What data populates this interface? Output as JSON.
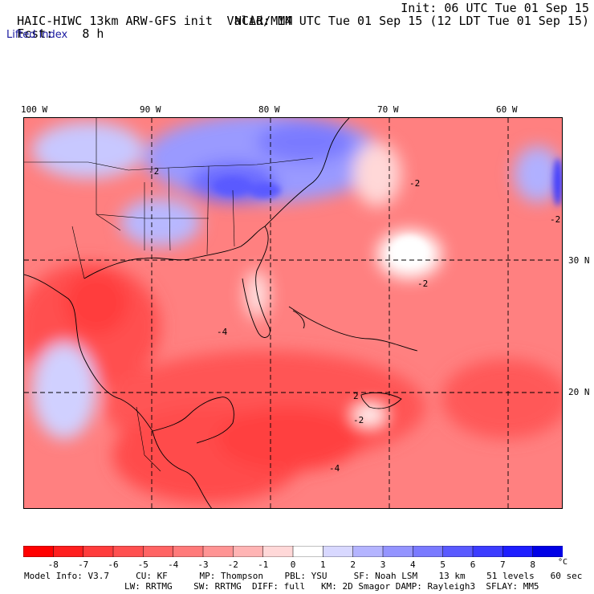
{
  "header": {
    "model_title": "HAIC-HIWC 13km ARW-GFS init",
    "org": "NCAR/MMM",
    "init": "Init: 06 UTC Tue 01 Sep 15",
    "fcst_label": "Fcst:",
    "fcst_hours": "8 h",
    "valid": "Valid: 14 UTC Tue 01 Sep 15 (12 LDT Tue 01 Sep 15)",
    "field": "Lifted index"
  },
  "axes": {
    "lon_labels": [
      "100 W",
      "90 W",
      "80 W",
      "70 W",
      "60 W"
    ],
    "lat_labels": [
      "30 N",
      "20 N"
    ]
  },
  "map_contours": {
    "label": "-2",
    "label_alt": "-4",
    "label_pos": "2"
  },
  "colorbar": {
    "ticks": [
      "-8",
      "-7",
      "-6",
      "-5",
      "-4",
      "-3",
      "-2",
      "-1",
      "0",
      "1",
      "2",
      "3",
      "4",
      "5",
      "6",
      "7",
      "8"
    ],
    "unit": "°C",
    "colors": [
      "#ff0000",
      "#ff1e1e",
      "#ff3c3c",
      "#ff5050",
      "#ff6464",
      "#ff7a7a",
      "#ff9494",
      "#ffb4b4",
      "#ffd8d8",
      "#ffffff",
      "#d8d8ff",
      "#b4b4ff",
      "#9494ff",
      "#7a7aff",
      "#5a5aff",
      "#3c3cff",
      "#1e1eff",
      "#0000e6"
    ]
  },
  "model_info": {
    "line1": "Model Info: V3.7     CU: KF      MP: Thompson    PBL: YSU     SF: Noah LSM    13 km    51 levels   60 sec",
    "line2": "LW: RRTMG    SW: RRTMG  DIFF: full   KM: 2D Smagor DAMP: Rayleigh3  SFLAY: MM5"
  }
}
